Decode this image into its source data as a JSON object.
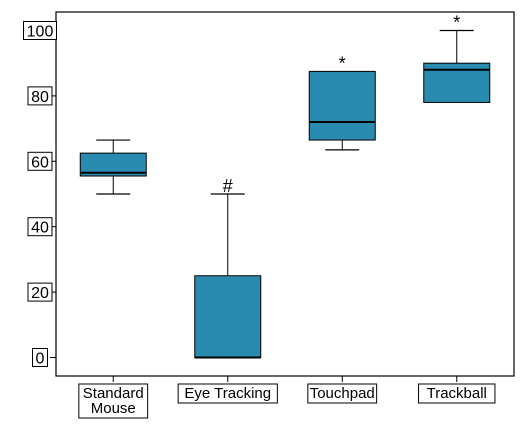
{
  "chart_data": {
    "type": "box",
    "title": "",
    "xlabel": "",
    "ylabel": "",
    "ylim": [
      -5,
      105
    ],
    "yticks": [
      0,
      20,
      40,
      60,
      80,
      100
    ],
    "ytick_labels": [
      "0",
      "20",
      "40",
      "60",
      "80",
      "100"
    ],
    "grid": false,
    "box_color": "#2a8bb0",
    "categories": [
      {
        "label_lines": [
          "Standard",
          "Mouse"
        ],
        "min": 50,
        "q1": 55.5,
        "median": 56.5,
        "q3": 62.5,
        "max": 66.5,
        "annotation": ""
      },
      {
        "label_lines": [
          "Eye Tracking"
        ],
        "min": 0,
        "q1": 0,
        "median": 0,
        "q3": 25,
        "max": 50,
        "annotation": "#"
      },
      {
        "label_lines": [
          "Touchpad"
        ],
        "min": 63.5,
        "q1": 66.5,
        "median": 72,
        "q3": 87.5,
        "max": 87.5,
        "annotation": "*"
      },
      {
        "label_lines": [
          "Trackball"
        ],
        "min": 78,
        "q1": 78,
        "median": 88,
        "q3": 90,
        "max": 100,
        "annotation": "*"
      }
    ]
  }
}
